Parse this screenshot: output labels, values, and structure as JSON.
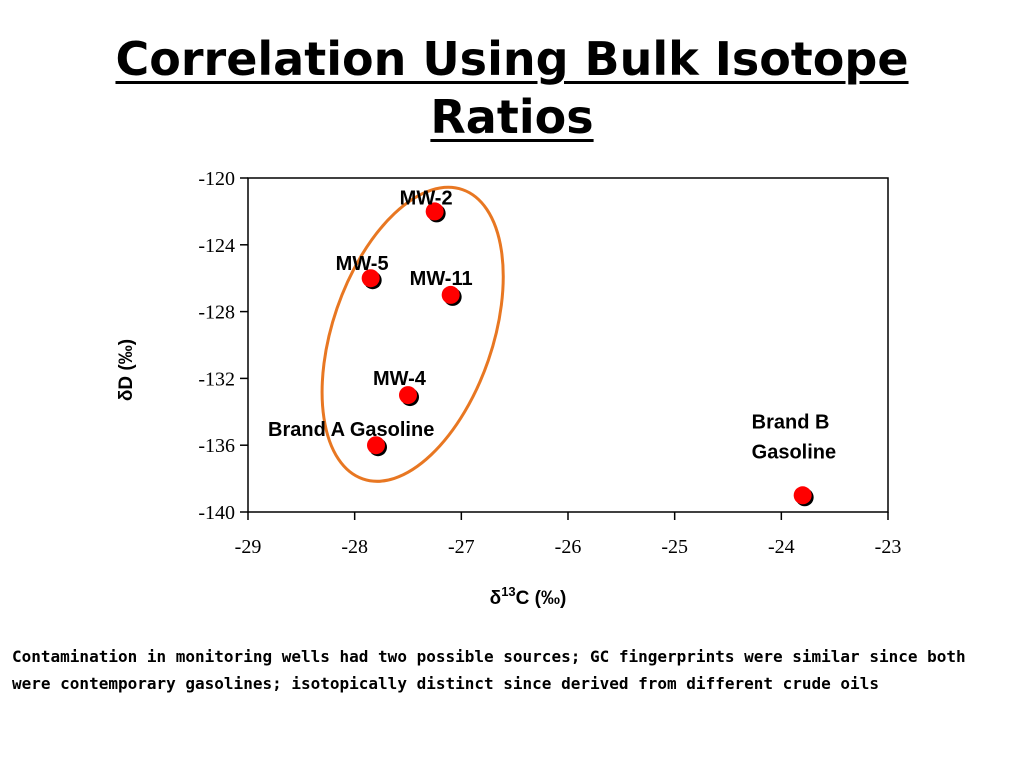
{
  "slide": {
    "title_lines": [
      "Correlation Using Bulk Isotope",
      "Ratios"
    ],
    "caption": "Contamination in monitoring wells had two possible sources; GC fingerprints were similar since both were contemporary gasolines; isotopically distinct since derived from different crude oils"
  },
  "chart_data": {
    "type": "scatter",
    "title": "",
    "xlabel": "δ13C (‰)",
    "ylabel": "δD (‰)",
    "xlim": [
      -29,
      -23
    ],
    "ylim": [
      -140,
      -120
    ],
    "x_ticks": [
      -29,
      -28,
      -27,
      -26,
      -25,
      -24,
      -23
    ],
    "y_ticks": [
      -120,
      -124,
      -128,
      -132,
      -136,
      -140
    ],
    "grid": false,
    "legend": "none",
    "points": [
      {
        "label": "MW-2",
        "x": -27.25,
        "y": -122.0
      },
      {
        "label": "MW-5",
        "x": -27.85,
        "y": -126.0
      },
      {
        "label": "MW-11",
        "x": -27.1,
        "y": -127.0
      },
      {
        "label": "MW-4",
        "x": -27.5,
        "y": -133.0
      },
      {
        "label": "Brand A Gasoline",
        "x": -27.8,
        "y": -136.0
      },
      {
        "label": "Brand B Gasoline",
        "x": -23.8,
        "y": -139.0
      }
    ],
    "marker_color": "#ff0000",
    "annotation": {
      "type": "ellipse",
      "color": "#e87722"
    }
  }
}
